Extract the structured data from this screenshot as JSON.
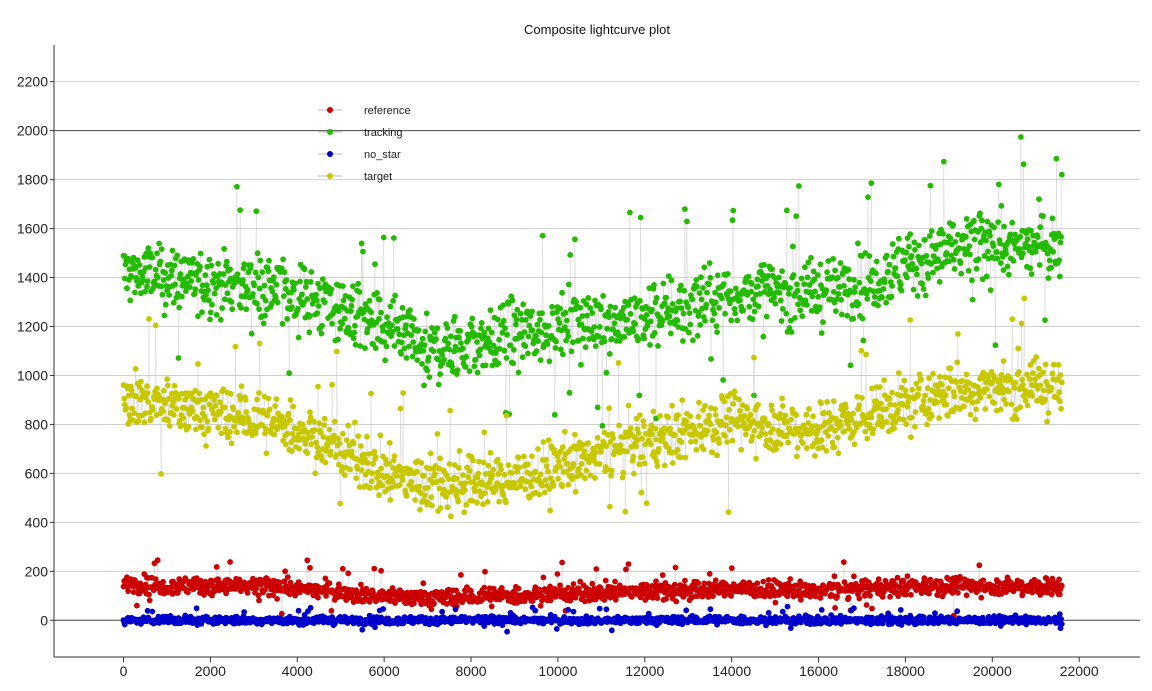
{
  "chart_data": {
    "type": "line",
    "title": "Composite lightcurve plot",
    "xlabel": "",
    "ylabel": "",
    "xlim": [
      -1600,
      23400
    ],
    "ylim": [
      -150,
      2350
    ],
    "xticks": [
      0,
      2000,
      4000,
      6000,
      8000,
      10000,
      12000,
      14000,
      16000,
      18000,
      20000,
      22000
    ],
    "yticks": [
      0,
      200,
      400,
      600,
      800,
      1000,
      1200,
      1400,
      1600,
      1800,
      2000,
      2200
    ],
    "grid": "y",
    "legend_position": "top-left",
    "x_range_data": [
      0,
      21600
    ],
    "series": [
      {
        "name": "reference",
        "color": "#cc0000",
        "x": [
          0,
          1000,
          2000,
          3000,
          4000,
          5000,
          6000,
          7000,
          8000,
          9000,
          10000,
          11000,
          12000,
          13000,
          14000,
          15000,
          16000,
          17000,
          18000,
          19000,
          20000,
          21000,
          21600
        ],
        "mean": [
          150,
          140,
          140,
          135,
          130,
          115,
          100,
          90,
          95,
          100,
          110,
          115,
          120,
          120,
          130,
          125,
          120,
          130,
          140,
          140,
          140,
          140,
          135
        ],
        "spread": 45
      },
      {
        "name": "tracking",
        "color": "#22bb00",
        "x": [
          0,
          1000,
          2000,
          3000,
          4000,
          5000,
          6000,
          7000,
          8000,
          9000,
          10000,
          11000,
          12000,
          13000,
          14000,
          15000,
          16000,
          17000,
          18000,
          19000,
          20000,
          21000,
          21600
        ],
        "mean": [
          1420,
          1400,
          1380,
          1370,
          1330,
          1270,
          1180,
          1100,
          1120,
          1160,
          1200,
          1220,
          1240,
          1280,
          1330,
          1340,
          1340,
          1380,
          1450,
          1500,
          1520,
          1530,
          1520
        ],
        "spread": 170
      },
      {
        "name": "no_star",
        "color": "#0000cc",
        "x": [
          0,
          2000,
          4000,
          6000,
          8000,
          10000,
          12000,
          14000,
          16000,
          18000,
          20000,
          21600
        ],
        "mean": [
          0,
          0,
          0,
          0,
          0,
          0,
          0,
          0,
          0,
          0,
          0,
          0
        ],
        "spread": 20
      },
      {
        "name": "target",
        "color": "#c8c800",
        "x": [
          0,
          1000,
          2000,
          3000,
          4000,
          5000,
          6000,
          7000,
          8000,
          9000,
          10000,
          11000,
          12000,
          13000,
          14000,
          15000,
          16000,
          17000,
          18000,
          19000,
          20000,
          21000,
          21600
        ],
        "mean": [
          920,
          880,
          850,
          820,
          780,
          700,
          600,
          560,
          560,
          580,
          620,
          680,
          740,
          780,
          820,
          800,
          780,
          830,
          880,
          930,
          950,
          960,
          940
        ],
        "spread": 140
      }
    ]
  }
}
